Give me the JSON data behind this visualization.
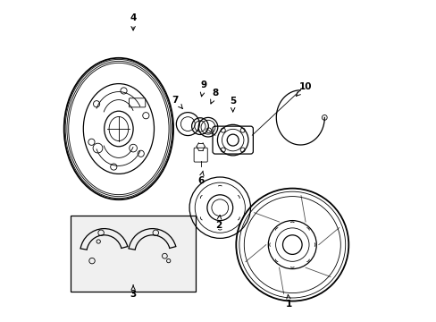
{
  "background_color": "#ffffff",
  "line_color": "#000000",
  "fig_width": 4.89,
  "fig_height": 3.6,
  "dpi": 100,
  "label_positions": {
    "1": [
      0.72,
      0.055,
      0.715,
      0.095
    ],
    "2": [
      0.5,
      0.3,
      0.505,
      0.335
    ],
    "3": [
      0.235,
      0.085,
      0.235,
      0.115
    ],
    "4": [
      0.235,
      0.945,
      0.235,
      0.895
    ],
    "5": [
      0.545,
      0.685,
      0.545,
      0.65
    ],
    "6": [
      0.445,
      0.44,
      0.452,
      0.47
    ],
    "7": [
      0.365,
      0.69,
      0.395,
      0.655
    ],
    "8": [
      0.49,
      0.71,
      0.472,
      0.668
    ],
    "9": [
      0.455,
      0.735,
      0.445,
      0.69
    ],
    "10": [
      0.77,
      0.73,
      0.74,
      0.7
    ]
  }
}
